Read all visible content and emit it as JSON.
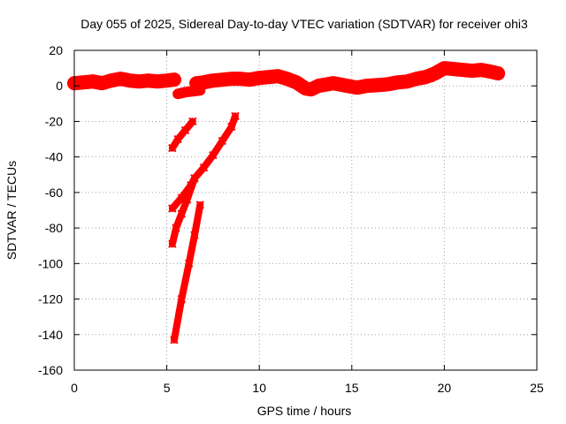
{
  "chart_data": {
    "type": "scatter",
    "title": "Day 055 of 2025, Sidereal Day-to-day VTEC variation (SDTVAR) for receiver ohi3",
    "xlabel": "GPS time / hours",
    "ylabel": "SDTVAR / TECUs",
    "xlim": [
      0,
      25
    ],
    "ylim": [
      -160,
      20
    ],
    "x_ticks": [
      "0",
      "5",
      "10",
      "15",
      "20",
      "25"
    ],
    "y_ticks": [
      "20",
      "0",
      "-20",
      "-40",
      "-60",
      "-80",
      "-100",
      "-120",
      "-140",
      "-160"
    ],
    "grid": true,
    "legend": "none",
    "series": [
      {
        "color": "#ff0000",
        "band_width": 3,
        "points": [
          [
            0,
            1.5
          ],
          [
            0.5,
            2
          ],
          [
            1,
            2.5
          ],
          [
            1.5,
            1.5
          ],
          [
            2,
            3
          ],
          [
            2.5,
            4
          ],
          [
            3,
            3
          ],
          [
            3.5,
            2.5
          ],
          [
            4,
            3
          ],
          [
            4.5,
            2.5
          ],
          [
            5,
            3
          ],
          [
            5.4,
            3.5
          ]
        ]
      },
      {
        "color": "#ff0000",
        "band_width": 2,
        "points": [
          [
            5.6,
            -4.5
          ],
          [
            6.0,
            -3.5
          ],
          [
            6.4,
            -3
          ],
          [
            6.8,
            -2.5
          ]
        ]
      },
      {
        "color": "#ff0000",
        "band_width": 3,
        "points": [
          [
            6.6,
            1.5
          ],
          [
            7,
            2
          ],
          [
            7.5,
            3
          ],
          [
            8,
            3.5
          ],
          [
            8.5,
            4
          ],
          [
            9,
            4
          ],
          [
            9.5,
            3.5
          ],
          [
            10,
            4.5
          ],
          [
            10.5,
            5
          ],
          [
            11,
            5.5
          ],
          [
            11.5,
            4
          ],
          [
            12,
            2
          ],
          [
            12.5,
            -1.5
          ],
          [
            12.8,
            -2
          ],
          [
            13.2,
            0
          ],
          [
            14,
            1.5
          ],
          [
            14.5,
            0.5
          ],
          [
            15,
            -0.5
          ],
          [
            15.3,
            -1
          ],
          [
            15.8,
            0
          ],
          [
            16.5,
            0.5
          ],
          [
            17,
            1
          ],
          [
            17.5,
            2
          ],
          [
            18,
            2.5
          ],
          [
            18.5,
            4
          ],
          [
            19,
            5
          ],
          [
            19.5,
            7
          ],
          [
            20,
            10
          ],
          [
            20.5,
            9.5
          ],
          [
            21,
            9
          ],
          [
            21.5,
            8.5
          ],
          [
            22,
            9
          ],
          [
            22.5,
            8
          ],
          [
            22.9,
            7
          ]
        ]
      },
      {
        "color": "#ff0000",
        "band_width": 2,
        "points": [
          [
            19.3,
            5
          ],
          [
            19.5,
            7
          ],
          [
            19.8,
            9
          ]
        ]
      },
      {
        "color": "#ff0000",
        "band_width": 1,
        "points": [
          [
            5.3,
            -35
          ],
          [
            5.6,
            -30
          ],
          [
            6,
            -25
          ],
          [
            6.4,
            -20
          ]
        ]
      },
      {
        "color": "#ff0000",
        "band_width": 1,
        "points": [
          [
            5.3,
            -69
          ],
          [
            5.8,
            -63
          ],
          [
            6.3,
            -56
          ],
          [
            6.5,
            -52
          ],
          [
            7,
            -46
          ],
          [
            7.5,
            -39
          ],
          [
            8,
            -31
          ],
          [
            8.5,
            -23
          ],
          [
            8.7,
            -17
          ]
        ]
      },
      {
        "color": "#ff0000",
        "band_width": 1,
        "points": [
          [
            5.3,
            -89
          ],
          [
            5.5,
            -80
          ],
          [
            5.8,
            -72
          ],
          [
            6.1,
            -64
          ],
          [
            6.5,
            -52
          ]
        ]
      },
      {
        "color": "#ff0000",
        "band_width": 1,
        "points": [
          [
            5.4,
            -143
          ],
          [
            5.8,
            -120
          ],
          [
            6.2,
            -100
          ],
          [
            6.5,
            -84
          ],
          [
            6.8,
            -67
          ]
        ]
      }
    ]
  }
}
